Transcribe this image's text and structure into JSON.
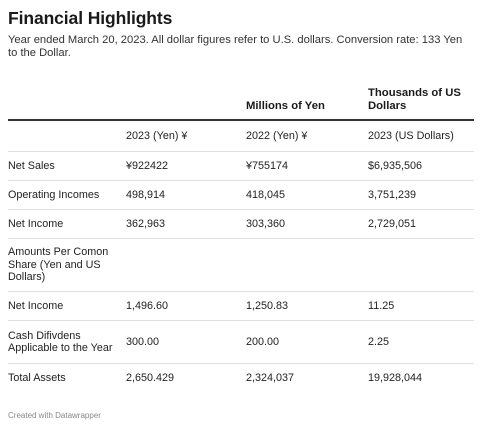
{
  "title": "Financial Highlights",
  "subtitle": "Year ended March 20, 2023. All dollar figures refer to U.S. dollars. Conversion rate: 133 Yen to the Dollar.",
  "group_headers": [
    "",
    "",
    "Millions of Yen",
    "Thousands of US Dollars"
  ],
  "column_headers": [
    "",
    "2023 (Yen) ¥",
    "2022 (Yen) ¥",
    "2023 (US Dollars)"
  ],
  "rows": [
    [
      "Net Sales",
      "¥922422",
      "¥755174",
      "$6,935,506"
    ],
    [
      "Operating Incomes",
      "498,914",
      "418,045",
      "3,751,239"
    ],
    [
      "Net Income",
      "362,963",
      "303,360",
      "2,729,051"
    ],
    [
      "Amounts Per Comon Share (Yen and US Dollars)",
      "",
      "",
      ""
    ],
    [
      "Net Income",
      "1,496.60",
      "1,250.83",
      "11.25"
    ],
    [
      "Cash Difivdens Applicable to the Year",
      "300.00",
      "200.00",
      "2.25"
    ],
    [
      "Total Assets",
      "2,650.429",
      "2,324,037",
      "19,928,044"
    ]
  ],
  "footer": "Created with Datawrapper"
}
